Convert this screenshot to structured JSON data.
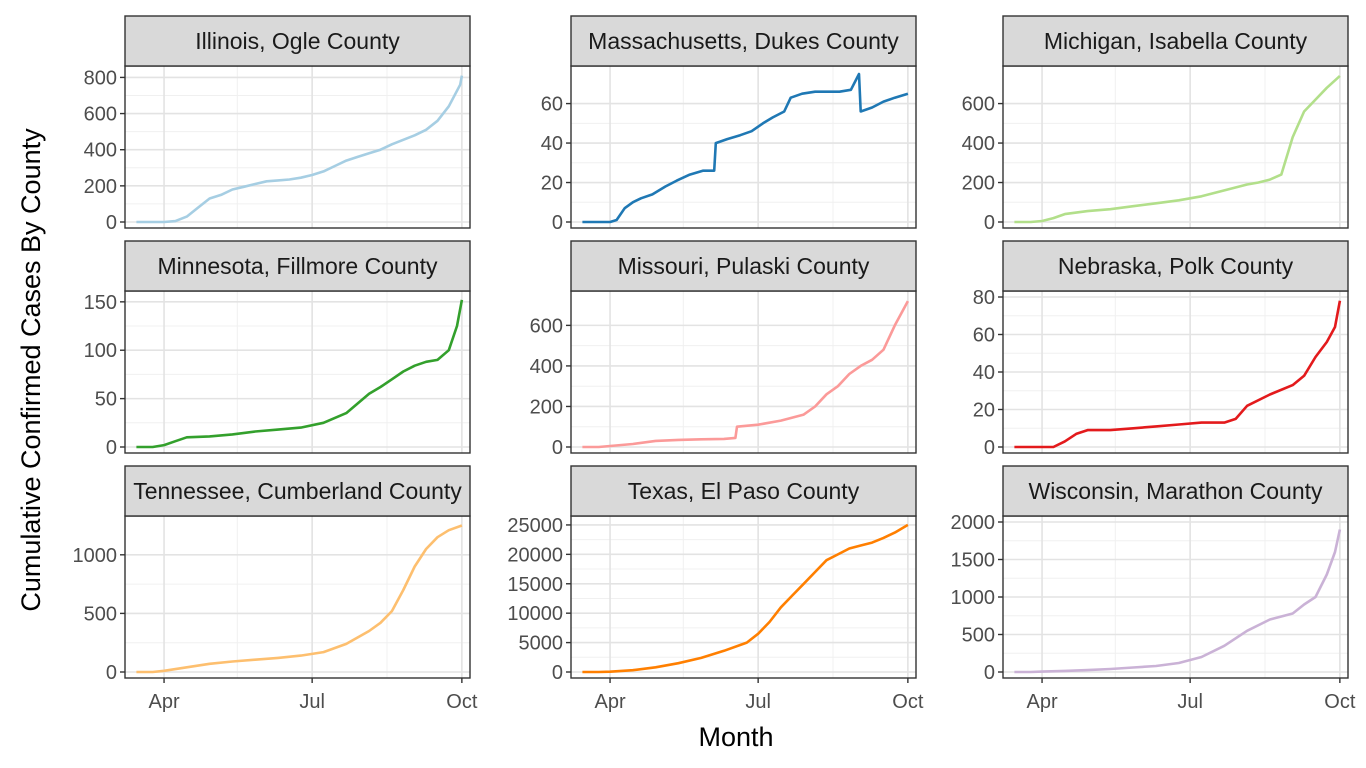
{
  "figure": {
    "xlabel": "Month",
    "ylabel": "Cumulative Confirmed Cases By County",
    "x_ticks": [
      "Apr",
      "Jul",
      "Oct"
    ]
  },
  "chart_data": [
    {
      "type": "line",
      "title": "Illinois, Ogle County",
      "color": "#A6CEE3",
      "ylim": [
        0,
        830
      ],
      "y_ticks": [
        0,
        200,
        400,
        600,
        800
      ],
      "x": [
        "2020-03-15",
        "2020-03-25",
        "2020-04-01",
        "2020-04-08",
        "2020-04-15",
        "2020-04-22",
        "2020-04-29",
        "2020-05-06",
        "2020-05-13",
        "2020-05-20",
        "2020-05-27",
        "2020-06-03",
        "2020-06-10",
        "2020-06-17",
        "2020-06-24",
        "2020-07-01",
        "2020-07-08",
        "2020-07-15",
        "2020-07-22",
        "2020-07-29",
        "2020-08-05",
        "2020-08-12",
        "2020-08-19",
        "2020-08-26",
        "2020-09-02",
        "2020-09-09",
        "2020-09-16",
        "2020-09-23",
        "2020-09-30",
        "2020-10-01"
      ],
      "y": [
        0,
        0,
        0,
        5,
        30,
        80,
        130,
        150,
        180,
        195,
        210,
        225,
        230,
        235,
        245,
        260,
        280,
        310,
        340,
        360,
        380,
        400,
        430,
        455,
        480,
        510,
        560,
        640,
        760,
        810
      ]
    },
    {
      "type": "line",
      "title": "Massachusetts, Dukes County",
      "color": "#1F78B4",
      "ylim": [
        0,
        76
      ],
      "y_ticks": [
        0,
        20,
        40,
        60
      ],
      "x": [
        "2020-03-15",
        "2020-03-25",
        "2020-04-01",
        "2020-04-05",
        "2020-04-10",
        "2020-04-15",
        "2020-04-20",
        "2020-04-27",
        "2020-05-05",
        "2020-05-12",
        "2020-05-20",
        "2020-05-28",
        "2020-06-04",
        "2020-06-05",
        "2020-06-12",
        "2020-06-20",
        "2020-06-27",
        "2020-07-04",
        "2020-07-10",
        "2020-07-17",
        "2020-07-21",
        "2020-07-28",
        "2020-08-05",
        "2020-08-12",
        "2020-08-20",
        "2020-08-27",
        "2020-09-01",
        "2020-09-02",
        "2020-09-09",
        "2020-09-16",
        "2020-09-23",
        "2020-10-01"
      ],
      "y": [
        0,
        0,
        0,
        1,
        7,
        10,
        12,
        14,
        18,
        21,
        24,
        26,
        26,
        40,
        42,
        44,
        46,
        50,
        53,
        56,
        63,
        65,
        66,
        66,
        66,
        67,
        75,
        56,
        58,
        61,
        63,
        65
      ]
    },
    {
      "type": "line",
      "title": "Michigan, Isabella County",
      "color": "#B2DF8A",
      "ylim": [
        0,
        760
      ],
      "y_ticks": [
        0,
        200,
        400,
        600
      ],
      "x": [
        "2020-03-15",
        "2020-03-25",
        "2020-04-01",
        "2020-04-08",
        "2020-04-15",
        "2020-04-29",
        "2020-05-13",
        "2020-05-27",
        "2020-06-10",
        "2020-06-24",
        "2020-07-08",
        "2020-07-22",
        "2020-08-05",
        "2020-08-12",
        "2020-08-19",
        "2020-08-26",
        "2020-09-02",
        "2020-09-09",
        "2020-09-16",
        "2020-09-23",
        "2020-10-01"
      ],
      "y": [
        0,
        0,
        5,
        20,
        40,
        55,
        65,
        80,
        95,
        110,
        130,
        160,
        190,
        200,
        215,
        240,
        430,
        560,
        620,
        680,
        740
      ]
    },
    {
      "type": "line",
      "title": "Minnesota, Fillmore County",
      "color": "#33A02C",
      "ylim": [
        0,
        155
      ],
      "y_ticks": [
        0,
        50,
        100,
        150
      ],
      "x": [
        "2020-03-15",
        "2020-03-25",
        "2020-04-01",
        "2020-04-08",
        "2020-04-15",
        "2020-04-29",
        "2020-05-13",
        "2020-05-27",
        "2020-06-10",
        "2020-06-24",
        "2020-07-08",
        "2020-07-22",
        "2020-08-05",
        "2020-08-12",
        "2020-08-19",
        "2020-08-26",
        "2020-09-02",
        "2020-09-09",
        "2020-09-16",
        "2020-09-23",
        "2020-09-28",
        "2020-10-01"
      ],
      "y": [
        0,
        0,
        2,
        6,
        10,
        11,
        13,
        16,
        18,
        20,
        25,
        35,
        55,
        62,
        70,
        78,
        84,
        88,
        90,
        100,
        125,
        152
      ]
    },
    {
      "type": "line",
      "title": "Missouri, Pulaski County",
      "color": "#FB9A99",
      "ylim": [
        0,
        740
      ],
      "y_ticks": [
        0,
        200,
        400,
        600
      ],
      "x": [
        "2020-03-15",
        "2020-03-25",
        "2020-04-01",
        "2020-04-15",
        "2020-04-29",
        "2020-05-13",
        "2020-05-27",
        "2020-06-10",
        "2020-06-17",
        "2020-06-18",
        "2020-07-01",
        "2020-07-15",
        "2020-07-29",
        "2020-08-05",
        "2020-08-12",
        "2020-08-19",
        "2020-08-26",
        "2020-09-02",
        "2020-09-09",
        "2020-09-16",
        "2020-09-23",
        "2020-10-01"
      ],
      "y": [
        0,
        0,
        5,
        15,
        30,
        35,
        38,
        40,
        45,
        100,
        110,
        130,
        160,
        200,
        260,
        300,
        360,
        400,
        430,
        480,
        600,
        720
      ]
    },
    {
      "type": "line",
      "title": "Nebraska, Polk County",
      "color": "#E31A1C",
      "ylim": [
        0,
        80
      ],
      "y_ticks": [
        0,
        20,
        40,
        60,
        80
      ],
      "x": [
        "2020-03-15",
        "2020-03-25",
        "2020-04-01",
        "2020-04-08",
        "2020-04-15",
        "2020-04-22",
        "2020-04-29",
        "2020-05-13",
        "2020-05-27",
        "2020-06-10",
        "2020-06-24",
        "2020-07-08",
        "2020-07-22",
        "2020-07-29",
        "2020-08-05",
        "2020-08-19",
        "2020-09-02",
        "2020-09-09",
        "2020-09-16",
        "2020-09-23",
        "2020-09-28",
        "2020-10-01"
      ],
      "y": [
        0,
        0,
        0,
        0,
        3,
        7,
        9,
        9,
        10,
        11,
        12,
        13,
        13,
        15,
        22,
        28,
        33,
        38,
        48,
        56,
        64,
        78
      ]
    },
    {
      "type": "line",
      "title": "Tennessee, Cumberland County",
      "color": "#FDBF6F",
      "ylim": [
        0,
        1280
      ],
      "y_ticks": [
        0,
        500,
        1000
      ],
      "x": [
        "2020-03-15",
        "2020-03-25",
        "2020-04-01",
        "2020-04-15",
        "2020-04-29",
        "2020-05-13",
        "2020-05-27",
        "2020-06-10",
        "2020-06-24",
        "2020-07-08",
        "2020-07-22",
        "2020-08-05",
        "2020-08-12",
        "2020-08-19",
        "2020-08-26",
        "2020-09-02",
        "2020-09-09",
        "2020-09-16",
        "2020-09-23",
        "2020-10-01"
      ],
      "y": [
        0,
        0,
        10,
        40,
        70,
        90,
        105,
        120,
        140,
        170,
        240,
        350,
        420,
        520,
        700,
        900,
        1050,
        1150,
        1210,
        1250
      ]
    },
    {
      "type": "line",
      "title": "Texas, El Paso County",
      "color": "#FF7F00",
      "ylim": [
        0,
        25500
      ],
      "y_ticks": [
        0,
        5000,
        10000,
        15000,
        20000,
        25000
      ],
      "x": [
        "2020-03-15",
        "2020-03-25",
        "2020-04-01",
        "2020-04-15",
        "2020-04-29",
        "2020-05-13",
        "2020-05-27",
        "2020-06-10",
        "2020-06-24",
        "2020-07-01",
        "2020-07-08",
        "2020-07-15",
        "2020-07-22",
        "2020-07-29",
        "2020-08-05",
        "2020-08-12",
        "2020-08-19",
        "2020-08-26",
        "2020-09-02",
        "2020-09-09",
        "2020-09-16",
        "2020-09-23",
        "2020-10-01"
      ],
      "y": [
        0,
        0,
        50,
        300,
        800,
        1500,
        2400,
        3600,
        5000,
        6500,
        8500,
        11000,
        13000,
        15000,
        17000,
        19000,
        20000,
        21000,
        21500,
        22000,
        22800,
        23700,
        25000
      ]
    },
    {
      "type": "line",
      "title": "Wisconsin, Marathon County",
      "color": "#CAB2D6",
      "ylim": [
        0,
        2000
      ],
      "y_ticks": [
        0,
        500,
        1000,
        1500,
        2000
      ],
      "x": [
        "2020-03-15",
        "2020-03-25",
        "2020-04-01",
        "2020-04-15",
        "2020-04-29",
        "2020-05-13",
        "2020-05-27",
        "2020-06-10",
        "2020-06-24",
        "2020-07-08",
        "2020-07-22",
        "2020-08-05",
        "2020-08-19",
        "2020-09-02",
        "2020-09-09",
        "2020-09-16",
        "2020-09-23",
        "2020-09-28",
        "2020-10-01"
      ],
      "y": [
        0,
        0,
        5,
        15,
        25,
        40,
        60,
        80,
        120,
        200,
        350,
        550,
        700,
        780,
        900,
        1000,
        1300,
        1600,
        1900
      ]
    }
  ]
}
